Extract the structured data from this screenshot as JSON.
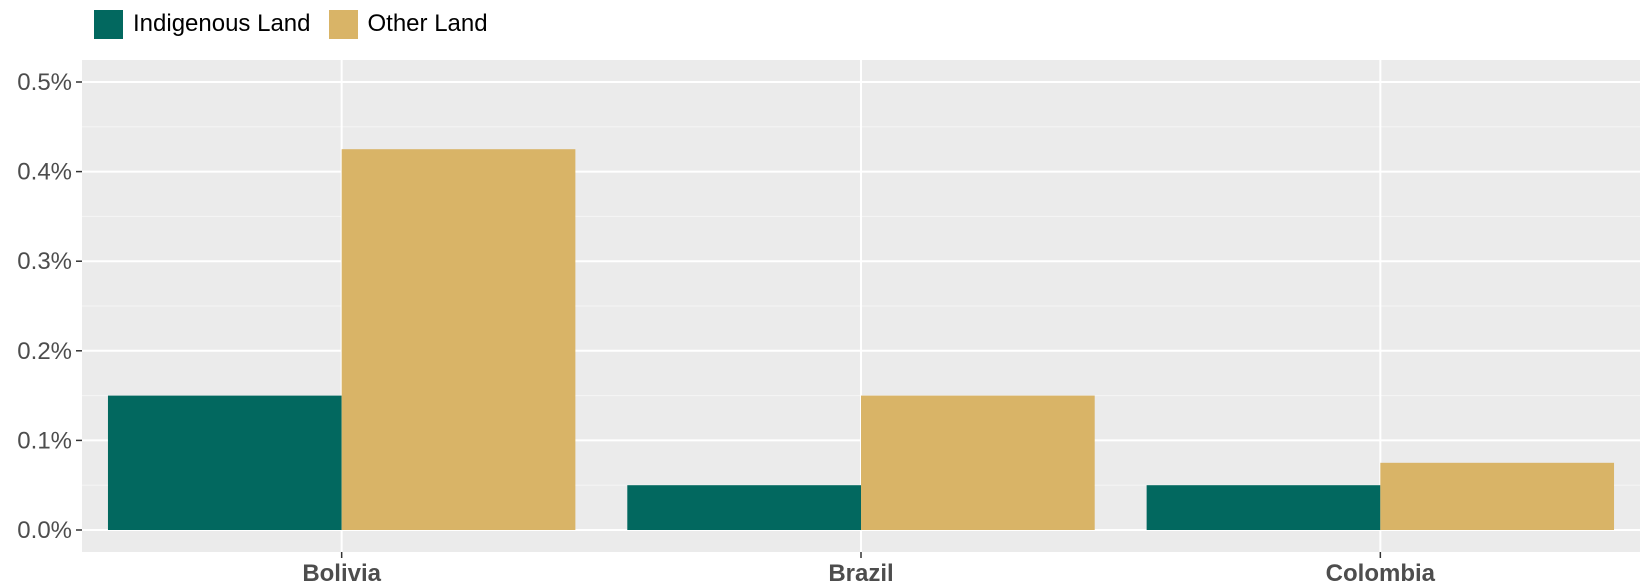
{
  "legend": {
    "items": [
      {
        "label": "Indigenous Land",
        "color": "#02685f"
      },
      {
        "label": "Other Land",
        "color": "#d9b467"
      }
    ]
  },
  "chart_data": {
    "type": "bar",
    "title": "",
    "xlabel": "",
    "ylabel": "",
    "categories": [
      "Bolivia",
      "Brazil",
      "Colombia"
    ],
    "series": [
      {
        "name": "Indigenous Land",
        "color": "#02685f",
        "values": [
          0.15,
          0.05,
          0.05
        ]
      },
      {
        "name": "Other Land",
        "color": "#d9b467",
        "values": [
          0.425,
          0.15,
          0.075
        ]
      }
    ],
    "ylim": [
      0,
      0.5
    ],
    "yticks": [
      0,
      0.1,
      0.2,
      0.3,
      0.4,
      0.5
    ],
    "ytick_labels": [
      "0.0%",
      "0.1%",
      "0.2%",
      "0.3%",
      "0.4%",
      "0.5%"
    ],
    "grid": true,
    "legend_position": "top-left"
  }
}
